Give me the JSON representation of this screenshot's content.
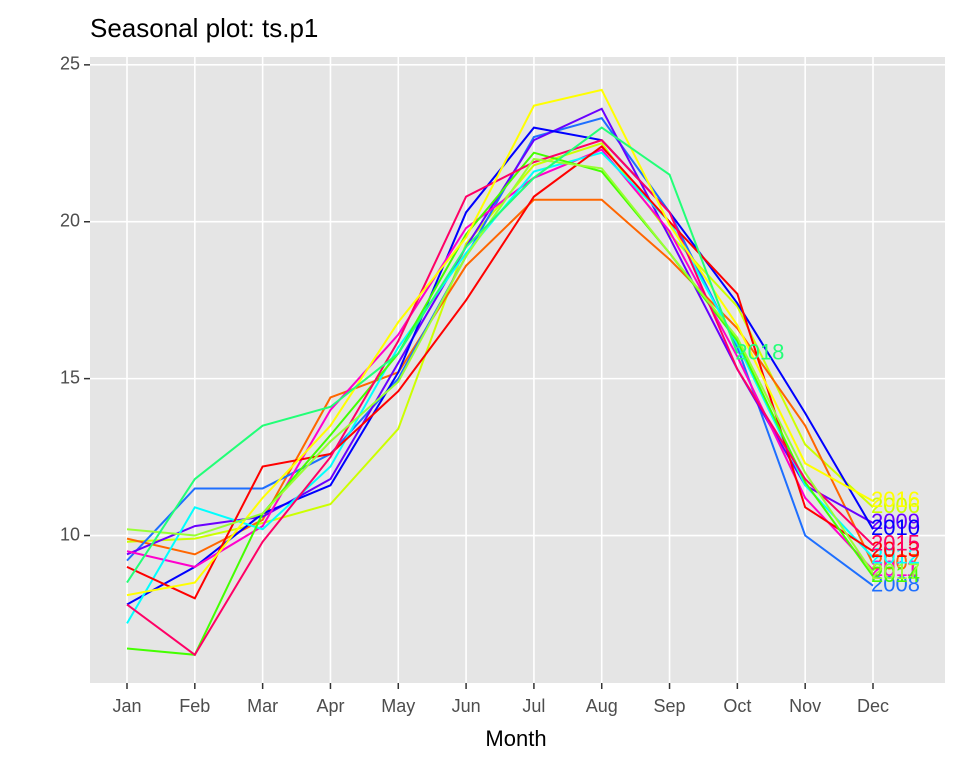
{
  "chart_data": {
    "type": "line",
    "title": "Seasonal plot: ts.p1",
    "x_label": "Month",
    "categories": [
      "Jan",
      "Feb",
      "Mar",
      "Apr",
      "May",
      "Jun",
      "Jul",
      "Aug",
      "Sep",
      "Oct",
      "Nov",
      "Dec"
    ],
    "ylim": [
      5.3,
      25.25
    ],
    "yticks": [
      10,
      15,
      20,
      25
    ],
    "grid": true,
    "series": [
      {
        "name": "2006",
        "color": "#CCFF00",
        "values": [
          9.8,
          9.9,
          10.4,
          11.0,
          13.4,
          19.3,
          21.8,
          22.5,
          19.6,
          17.3,
          12.9,
          10.9
        ]
      },
      {
        "name": "2007",
        "color": "#FF6600",
        "values": [
          9.9,
          9.4,
          10.5,
          14.4,
          15.2,
          18.6,
          20.7,
          20.7,
          18.8,
          16.6,
          13.5,
          9.1
        ]
      },
      {
        "name": "2008",
        "color": "#1E6FFF",
        "values": [
          9.2,
          11.5,
          11.5,
          12.6,
          15.0,
          18.9,
          22.7,
          23.3,
          20.3,
          16.0,
          10.0,
          8.4
        ]
      },
      {
        "name": "2009",
        "color": "#6A00FF",
        "values": [
          9.4,
          10.3,
          10.6,
          11.8,
          15.5,
          19.2,
          22.6,
          23.6,
          19.5,
          15.3,
          11.6,
          10.4
        ]
      },
      {
        "name": "2010",
        "color": "#0000FF",
        "values": [
          7.8,
          9.0,
          10.7,
          11.6,
          15.2,
          20.3,
          23.0,
          22.6,
          20.3,
          17.4,
          13.9,
          10.2
        ]
      },
      {
        "name": "2011",
        "color": "#FF00CC",
        "values": [
          9.5,
          9.0,
          10.3,
          14.0,
          16.4,
          19.8,
          21.4,
          22.3,
          19.7,
          15.7,
          11.2,
          8.9
        ]
      },
      {
        "name": "2012",
        "color": "#00FFFF",
        "values": [
          7.2,
          10.9,
          10.2,
          12.2,
          16.0,
          19.0,
          21.6,
          22.2,
          20.0,
          16.1,
          11.6,
          9.3
        ]
      },
      {
        "name": "2013",
        "color": "#FF0000",
        "values": [
          9.0,
          8.0,
          12.2,
          12.6,
          14.6,
          17.5,
          20.8,
          22.4,
          20.0,
          17.7,
          10.9,
          9.5
        ]
      },
      {
        "name": "2014",
        "color": "#44FF00",
        "values": [
          6.4,
          6.2,
          10.7,
          13.2,
          15.8,
          19.6,
          22.2,
          21.6,
          19.0,
          16.2,
          11.7,
          8.7
        ]
      },
      {
        "name": "2015",
        "color": "#FF0066",
        "values": [
          7.8,
          6.2,
          9.8,
          12.5,
          16.2,
          20.8,
          21.9,
          22.6,
          20.3,
          15.3,
          11.8,
          9.7
        ]
      },
      {
        "name": "2016",
        "color": "#FFFF00",
        "values": [
          8.1,
          8.5,
          11.2,
          13.5,
          16.8,
          19.5,
          23.7,
          24.2,
          19.9,
          16.7,
          12.3,
          11.1
        ]
      },
      {
        "name": "2017",
        "color": "#99FF33",
        "values": [
          10.2,
          10.0,
          10.7,
          13.0,
          14.9,
          18.9,
          22.0,
          21.7,
          19.0,
          16.3,
          12.0,
          8.8
        ]
      },
      {
        "name": "2018",
        "color": "#22FF77",
        "values": [
          8.5,
          11.8,
          13.5,
          14.1,
          15.8,
          19.2,
          21.4,
          23.0,
          21.5,
          15.8,
          null,
          null
        ]
      }
    ]
  }
}
